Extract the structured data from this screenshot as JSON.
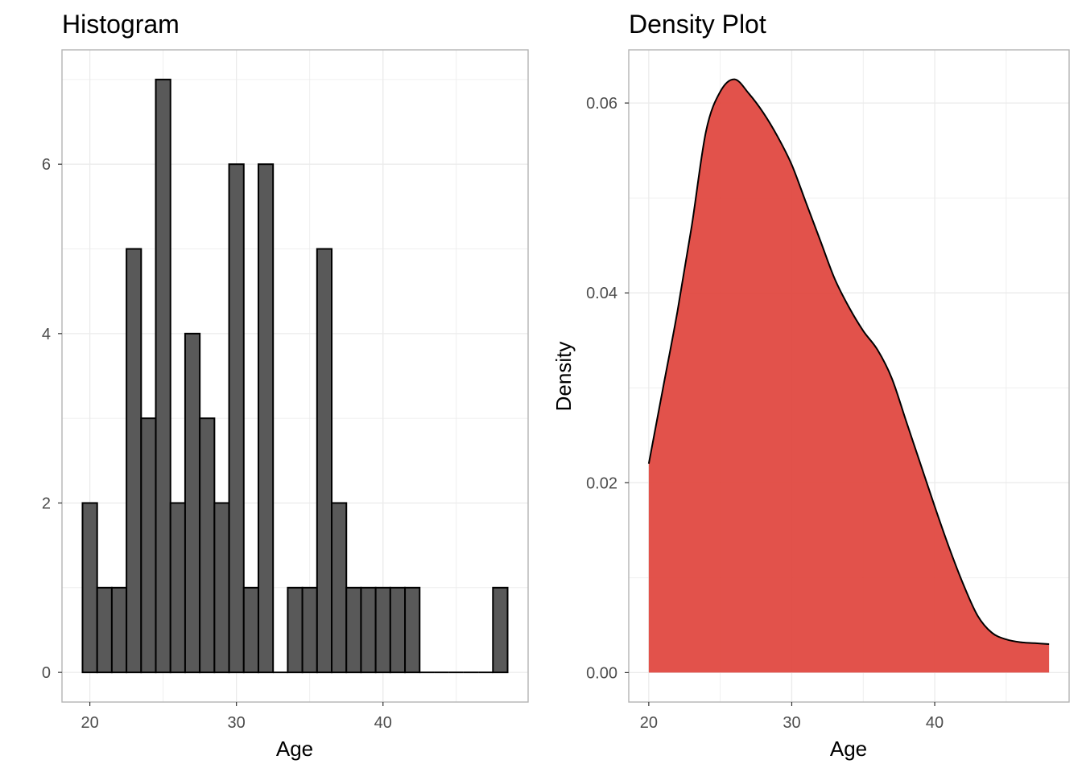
{
  "chart_data": [
    {
      "type": "bar",
      "title": "Histogram",
      "xlabel": "Age",
      "ylabel": "",
      "bin_width": 1,
      "bins": [
        {
          "x": 20,
          "count": 2
        },
        {
          "x": 21,
          "count": 1
        },
        {
          "x": 22,
          "count": 1
        },
        {
          "x": 23,
          "count": 5
        },
        {
          "x": 24,
          "count": 3
        },
        {
          "x": 25,
          "count": 7
        },
        {
          "x": 26,
          "count": 2
        },
        {
          "x": 27,
          "count": 4
        },
        {
          "x": 28,
          "count": 3
        },
        {
          "x": 29,
          "count": 2
        },
        {
          "x": 30,
          "count": 6
        },
        {
          "x": 31,
          "count": 1
        },
        {
          "x": 32,
          "count": 6
        },
        {
          "x": 33,
          "count": 0
        },
        {
          "x": 34,
          "count": 1
        },
        {
          "x": 35,
          "count": 1
        },
        {
          "x": 36,
          "count": 5
        },
        {
          "x": 37,
          "count": 2
        },
        {
          "x": 38,
          "count": 1
        },
        {
          "x": 39,
          "count": 1
        },
        {
          "x": 40,
          "count": 1
        },
        {
          "x": 41,
          "count": 1
        },
        {
          "x": 42,
          "count": 1
        },
        {
          "x": 43,
          "count": 0
        },
        {
          "x": 44,
          "count": 0
        },
        {
          "x": 45,
          "count": 0
        },
        {
          "x": 46,
          "count": 0
        },
        {
          "x": 47,
          "count": 0
        },
        {
          "x": 48,
          "count": 1
        }
      ],
      "x_ticks": [
        20,
        30,
        40
      ],
      "x_tick_labels": [
        "20",
        "30",
        "40"
      ],
      "y_ticks": [
        0,
        2,
        4,
        6
      ],
      "y_tick_labels": [
        "0",
        "2",
        "4",
        "6"
      ],
      "xlim": [
        18.1,
        49.9
      ],
      "ylim": [
        -0.35,
        7.35
      ],
      "grid": true,
      "colors": {
        "bar_fill": "#595959",
        "bar_edge": "#000000",
        "grid": "#ebebeb",
        "panel_border": "#b3b3b3"
      }
    },
    {
      "type": "area",
      "title": "Density Plot",
      "xlabel": "Age",
      "ylabel": "Density",
      "x": [
        20,
        21,
        22,
        23,
        24,
        25,
        26,
        27,
        28,
        29,
        30,
        31,
        32,
        33,
        34,
        35,
        36,
        37,
        38,
        39,
        40,
        41,
        42,
        43,
        44,
        45,
        46,
        47,
        48
      ],
      "density": [
        0.022,
        0.03,
        0.038,
        0.047,
        0.057,
        0.0612,
        0.0625,
        0.061,
        0.059,
        0.0565,
        0.0535,
        0.0495,
        0.0455,
        0.0415,
        0.0385,
        0.036,
        0.034,
        0.031,
        0.0265,
        0.022,
        0.0175,
        0.0132,
        0.0093,
        0.006,
        0.0042,
        0.0035,
        0.0032,
        0.0031,
        0.003
      ],
      "x_ticks": [
        20,
        30,
        40
      ],
      "x_tick_labels": [
        "20",
        "30",
        "40"
      ],
      "y_ticks": [
        0,
        0.02,
        0.04,
        0.06
      ],
      "y_tick_labels": [
        "0.00",
        "0.02",
        "0.04",
        "0.06"
      ],
      "xlim": [
        18.6,
        49.4
      ],
      "ylim": [
        -0.0031,
        0.0656
      ],
      "grid": true,
      "colors": {
        "fill": "#e0433c",
        "line": "#000000",
        "grid": "#ebebeb",
        "panel_border": "#b3b3b3"
      }
    }
  ]
}
